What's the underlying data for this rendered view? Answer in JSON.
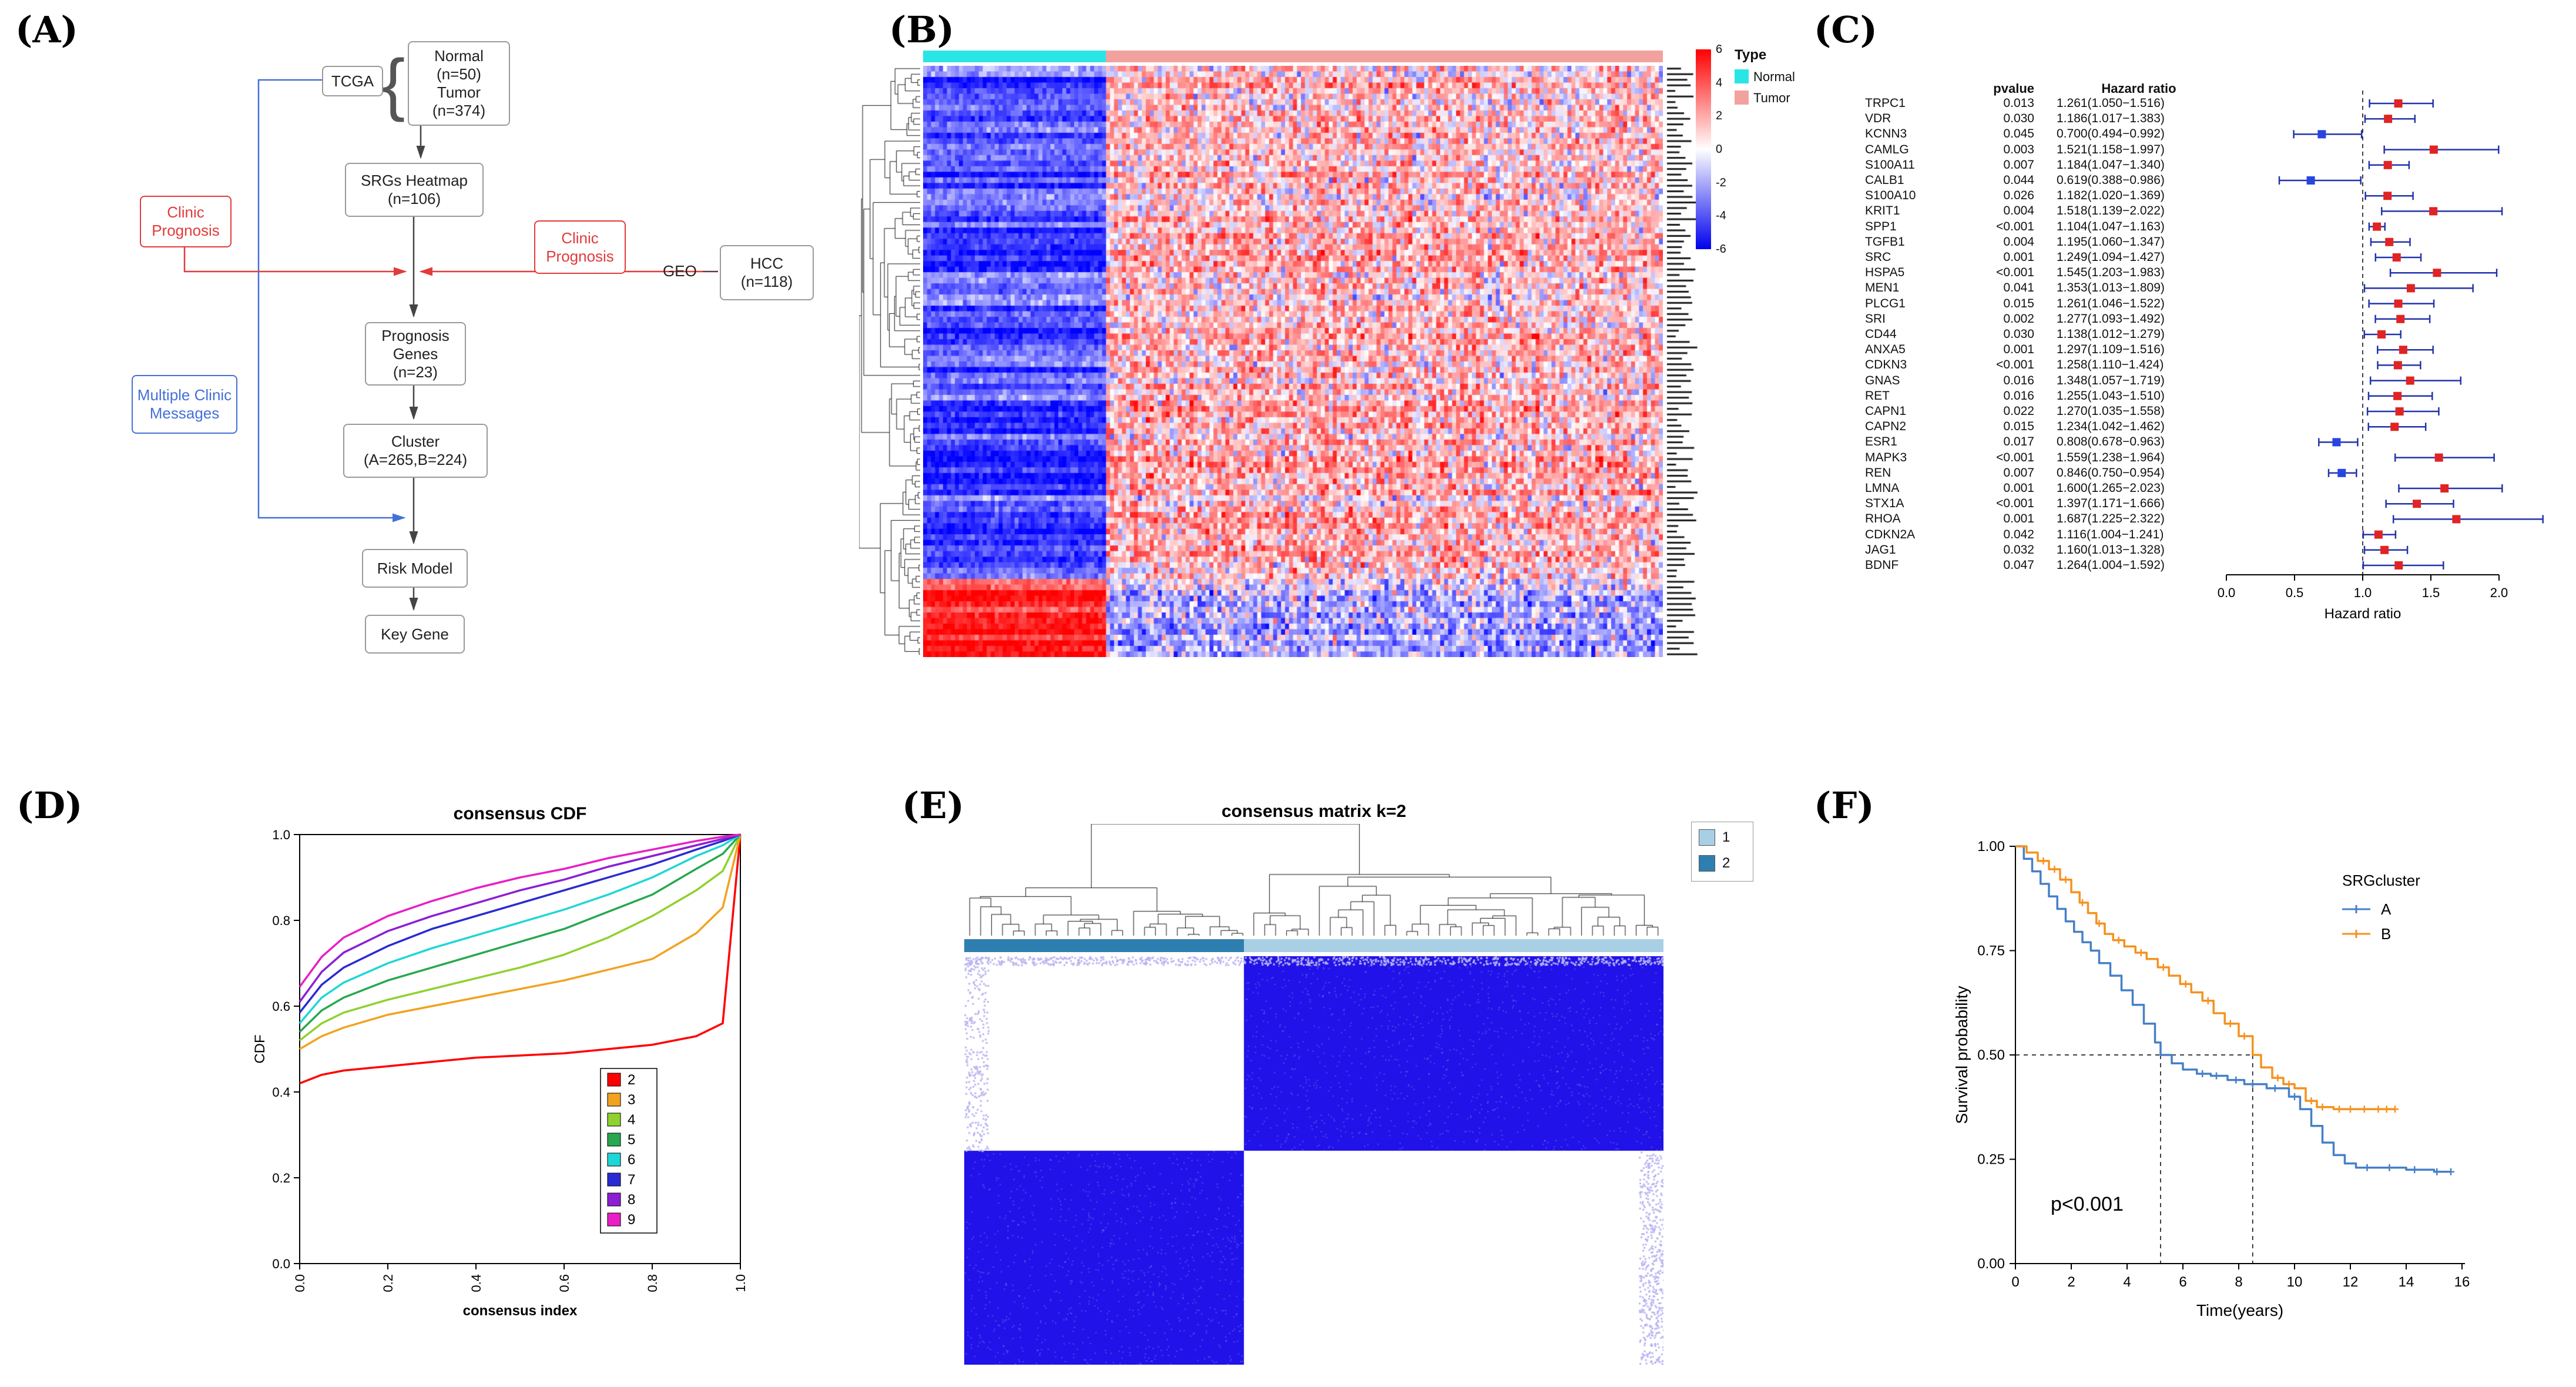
{
  "panels": {
    "a": "(A)",
    "b": "(B)",
    "c": "(C)",
    "d": "(D)",
    "e": "(E)",
    "f": "(F)"
  },
  "flowchart": {
    "tcga_label": "TCGA",
    "brace": "{",
    "normal_line1": "Normal",
    "normal_line2": "(n=50)",
    "tumor_line1": "Tumor",
    "tumor_line2": "(n=374)",
    "srgs_line1": "SRGs Heatmap",
    "srgs_line2": "(n=106)",
    "clinic_left_line1": "Clinic",
    "clinic_left_line2": "Prognosis",
    "clinic_right_line1": "Clinic",
    "clinic_right_line2": "Prognosis",
    "geo_label": "GEO",
    "hcc_line1": "HCC",
    "hcc_line2": "(n=118)",
    "prognosis_line1": "Prognosis",
    "prognosis_line2": "Genes",
    "prognosis_line3": "(n=23)",
    "multi_line1": "Multiple Clinic",
    "multi_line2": "Messages",
    "cluster_line1": "Cluster",
    "cluster_line2": "(A=265,B=224)",
    "risk_label": "Risk Model",
    "keygene_label": "Key Gene"
  },
  "chart_data": [
    {
      "id": "heatmap",
      "type": "heatmap",
      "seed": 7,
      "rows": 106,
      "cols_normal": 46,
      "cols_tumor": 140,
      "red_block_rows": 14,
      "value_range": [
        -6,
        6
      ],
      "colorbar_ticks": [
        "6",
        "4",
        "2",
        "0",
        "-2",
        "-4",
        "-6"
      ],
      "legend_title": "Type",
      "groups": [
        {
          "label": "Normal",
          "color": "#2ae5e5"
        },
        {
          "label": "Tumor",
          "color": "#f2a29e"
        }
      ],
      "color_high": "#ff0000",
      "color_mid": "#ffffff",
      "color_low": "#0000ee"
    },
    {
      "id": "forest",
      "type": "scatter",
      "header_pvalue": "pvalue",
      "header_hr": "Hazard ratio",
      "xlabel": "Hazard ratio",
      "x_ticks": [
        "0.0",
        "0.5",
        "1.0",
        "1.5",
        "2.0"
      ],
      "ref_line": 1.0,
      "colors": {
        "risk": "#e02424",
        "protective": "#2745e0",
        "whisker": "#2233aa"
      },
      "rows": [
        {
          "gene": "TRPC1",
          "pvalue": "0.013",
          "hr_text": "1.261(1.050−1.516)",
          "hr": 1.261,
          "lo": 1.05,
          "hi": 1.516
        },
        {
          "gene": "VDR",
          "pvalue": "0.030",
          "hr_text": "1.186(1.017−1.383)",
          "hr": 1.186,
          "lo": 1.017,
          "hi": 1.383
        },
        {
          "gene": "KCNN3",
          "pvalue": "0.045",
          "hr_text": "0.700(0.494−0.992)",
          "hr": 0.7,
          "lo": 0.494,
          "hi": 0.992
        },
        {
          "gene": "CAMLG",
          "pvalue": "0.003",
          "hr_text": "1.521(1.158−1.997)",
          "hr": 1.521,
          "lo": 1.158,
          "hi": 1.997
        },
        {
          "gene": "S100A11",
          "pvalue": "0.007",
          "hr_text": "1.184(1.047−1.340)",
          "hr": 1.184,
          "lo": 1.047,
          "hi": 1.34
        },
        {
          "gene": "CALB1",
          "pvalue": "0.044",
          "hr_text": "0.619(0.388−0.986)",
          "hr": 0.619,
          "lo": 0.388,
          "hi": 0.986
        },
        {
          "gene": "S100A10",
          "pvalue": "0.026",
          "hr_text": "1.182(1.020−1.369)",
          "hr": 1.182,
          "lo": 1.02,
          "hi": 1.369
        },
        {
          "gene": "KRIT1",
          "pvalue": "0.004",
          "hr_text": "1.518(1.139−2.022)",
          "hr": 1.518,
          "lo": 1.139,
          "hi": 2.022
        },
        {
          "gene": "SPP1",
          "pvalue": "<0.001",
          "hr_text": "1.104(1.047−1.163)",
          "hr": 1.104,
          "lo": 1.047,
          "hi": 1.163
        },
        {
          "gene": "TGFB1",
          "pvalue": "0.004",
          "hr_text": "1.195(1.060−1.347)",
          "hr": 1.195,
          "lo": 1.06,
          "hi": 1.347
        },
        {
          "gene": "SRC",
          "pvalue": "0.001",
          "hr_text": "1.249(1.094−1.427)",
          "hr": 1.249,
          "lo": 1.094,
          "hi": 1.427
        },
        {
          "gene": "HSPA5",
          "pvalue": "<0.001",
          "hr_text": "1.545(1.203−1.983)",
          "hr": 1.545,
          "lo": 1.203,
          "hi": 1.983
        },
        {
          "gene": "MEN1",
          "pvalue": "0.041",
          "hr_text": "1.353(1.013−1.809)",
          "hr": 1.353,
          "lo": 1.013,
          "hi": 1.809
        },
        {
          "gene": "PLCG1",
          "pvalue": "0.015",
          "hr_text": "1.261(1.046−1.522)",
          "hr": 1.261,
          "lo": 1.046,
          "hi": 1.522
        },
        {
          "gene": "SRI",
          "pvalue": "0.002",
          "hr_text": "1.277(1.093−1.492)",
          "hr": 1.277,
          "lo": 1.093,
          "hi": 1.492
        },
        {
          "gene": "CD44",
          "pvalue": "0.030",
          "hr_text": "1.138(1.012−1.279)",
          "hr": 1.138,
          "lo": 1.012,
          "hi": 1.279
        },
        {
          "gene": "ANXA5",
          "pvalue": "0.001",
          "hr_text": "1.297(1.109−1.516)",
          "hr": 1.297,
          "lo": 1.109,
          "hi": 1.516
        },
        {
          "gene": "CDKN3",
          "pvalue": "<0.001",
          "hr_text": "1.258(1.110−1.424)",
          "hr": 1.258,
          "lo": 1.11,
          "hi": 1.424
        },
        {
          "gene": "GNAS",
          "pvalue": "0.016",
          "hr_text": "1.348(1.057−1.719)",
          "hr": 1.348,
          "lo": 1.057,
          "hi": 1.719
        },
        {
          "gene": "RET",
          "pvalue": "0.016",
          "hr_text": "1.255(1.043−1.510)",
          "hr": 1.255,
          "lo": 1.043,
          "hi": 1.51
        },
        {
          "gene": "CAPN1",
          "pvalue": "0.022",
          "hr_text": "1.270(1.035−1.558)",
          "hr": 1.27,
          "lo": 1.035,
          "hi": 1.558
        },
        {
          "gene": "CAPN2",
          "pvalue": "0.015",
          "hr_text": "1.234(1.042−1.462)",
          "hr": 1.234,
          "lo": 1.042,
          "hi": 1.462
        },
        {
          "gene": "ESR1",
          "pvalue": "0.017",
          "hr_text": "0.808(0.678−0.963)",
          "hr": 0.808,
          "lo": 0.678,
          "hi": 0.963
        },
        {
          "gene": "MAPK3",
          "pvalue": "<0.001",
          "hr_text": "1.559(1.238−1.964)",
          "hr": 1.559,
          "lo": 1.238,
          "hi": 1.964
        },
        {
          "gene": "REN",
          "pvalue": "0.007",
          "hr_text": "0.846(0.750−0.954)",
          "hr": 0.846,
          "lo": 0.75,
          "hi": 0.954
        },
        {
          "gene": "LMNA",
          "pvalue": "0.001",
          "hr_text": "1.600(1.265−2.023)",
          "hr": 1.6,
          "lo": 1.265,
          "hi": 2.023
        },
        {
          "gene": "STX1A",
          "pvalue": "<0.001",
          "hr_text": "1.397(1.171−1.666)",
          "hr": 1.397,
          "lo": 1.171,
          "hi": 1.666
        },
        {
          "gene": "RHOA",
          "pvalue": "0.001",
          "hr_text": "1.687(1.225−2.322)",
          "hr": 1.687,
          "lo": 1.225,
          "hi": 2.322
        },
        {
          "gene": "CDKN2A",
          "pvalue": "0.042",
          "hr_text": "1.116(1.004−1.241)",
          "hr": 1.116,
          "lo": 1.004,
          "hi": 1.241
        },
        {
          "gene": "JAG1",
          "pvalue": "0.032",
          "hr_text": "1.160(1.013−1.328)",
          "hr": 1.16,
          "lo": 1.013,
          "hi": 1.328
        },
        {
          "gene": "BDNF",
          "pvalue": "0.047",
          "hr_text": "1.264(1.004−1.592)",
          "hr": 1.264,
          "lo": 1.004,
          "hi": 1.592
        }
      ]
    },
    {
      "id": "cdf",
      "type": "line",
      "title": "consensus CDF",
      "xlabel": "consensus index",
      "ylabel": "CDF",
      "x_ticks": [
        "0.0",
        "0.2",
        "0.4",
        "0.6",
        "0.8",
        "1.0"
      ],
      "y_ticks": [
        "0.0",
        "0.2",
        "0.4",
        "0.6",
        "0.8",
        "1.0"
      ],
      "xlim": [
        0,
        1
      ],
      "ylim": [
        0,
        1
      ],
      "x": [
        0,
        0.05,
        0.1,
        0.2,
        0.3,
        0.4,
        0.5,
        0.6,
        0.7,
        0.8,
        0.9,
        0.96,
        1.0
      ],
      "series": [
        {
          "name": "2",
          "color": "#ff0000",
          "y": [
            0.42,
            0.44,
            0.45,
            0.46,
            0.47,
            0.48,
            0.485,
            0.49,
            0.5,
            0.51,
            0.53,
            0.56,
            1.0
          ]
        },
        {
          "name": "3",
          "color": "#f2a21f",
          "y": [
            0.5,
            0.53,
            0.55,
            0.58,
            0.6,
            0.62,
            0.64,
            0.66,
            0.685,
            0.71,
            0.77,
            0.83,
            1.0
          ]
        },
        {
          "name": "4",
          "color": "#8fd12e",
          "y": [
            0.52,
            0.56,
            0.585,
            0.615,
            0.64,
            0.665,
            0.69,
            0.72,
            0.76,
            0.81,
            0.87,
            0.915,
            1.0
          ]
        },
        {
          "name": "5",
          "color": "#27a84e",
          "y": [
            0.54,
            0.59,
            0.62,
            0.66,
            0.69,
            0.72,
            0.75,
            0.78,
            0.82,
            0.86,
            0.92,
            0.955,
            1.0
          ]
        },
        {
          "name": "6",
          "color": "#1fd6d6",
          "y": [
            0.56,
            0.62,
            0.655,
            0.7,
            0.735,
            0.765,
            0.795,
            0.825,
            0.86,
            0.9,
            0.95,
            0.975,
            1.0
          ]
        },
        {
          "name": "7",
          "color": "#2a2ad4",
          "y": [
            0.585,
            0.65,
            0.69,
            0.74,
            0.78,
            0.81,
            0.84,
            0.87,
            0.9,
            0.93,
            0.965,
            0.985,
            1.0
          ]
        },
        {
          "name": "8",
          "color": "#8c1fd4",
          "y": [
            0.61,
            0.68,
            0.725,
            0.775,
            0.81,
            0.84,
            0.87,
            0.895,
            0.925,
            0.95,
            0.975,
            0.99,
            1.0
          ]
        },
        {
          "name": "9",
          "color": "#e81fc4",
          "y": [
            0.645,
            0.715,
            0.76,
            0.81,
            0.845,
            0.875,
            0.9,
            0.92,
            0.945,
            0.965,
            0.985,
            0.995,
            1.0
          ]
        }
      ]
    },
    {
      "id": "consensus",
      "type": "heatmap",
      "title": "consensus matrix k=2",
      "seed": 13,
      "legend": [
        {
          "label": "1",
          "color": "#a9cfe5"
        },
        {
          "label": "2",
          "color": "#2e7fb0"
        }
      ],
      "left_cluster_frac": 0.4,
      "top_block_frac": 0.476,
      "block_color": "#2012e8",
      "speckle_color": "#b9b4f2",
      "background": "#ffffff"
    },
    {
      "id": "km",
      "type": "line",
      "ylabel": "Survival probability",
      "xlabel": "Time(years)",
      "x_ticks": [
        0,
        2,
        4,
        6,
        8,
        10,
        12,
        14,
        16
      ],
      "y_tick_values": [
        1,
        0.75,
        0.5,
        0.25,
        0
      ],
      "y_tick_labels": [
        "1.00",
        "0.75",
        "0.50",
        "0.25",
        "0.00"
      ],
      "legend_title": "SRGcluster",
      "pvalue_text": "p<0.001",
      "median_y": 0.5,
      "medians": [
        5.2,
        8.5
      ],
      "xlim": [
        0,
        16
      ],
      "series": [
        {
          "name": "A",
          "color": "#4680c8",
          "t": [
            0,
            0.3,
            0.6,
            0.9,
            1.2,
            1.5,
            1.8,
            2.1,
            2.4,
            2.7,
            3.0,
            3.4,
            3.8,
            4.2,
            4.6,
            5.0,
            5.2,
            5.6,
            6.0,
            6.5,
            7.0,
            7.6,
            8.2,
            9.0,
            9.8,
            10.2,
            10.6,
            11.0,
            11.4,
            11.8,
            12.2,
            13.0,
            14.0,
            15.0,
            15.6
          ],
          "s": [
            1.0,
            0.97,
            0.94,
            0.91,
            0.88,
            0.85,
            0.82,
            0.795,
            0.77,
            0.75,
            0.72,
            0.69,
            0.655,
            0.62,
            0.575,
            0.53,
            0.5,
            0.48,
            0.465,
            0.455,
            0.45,
            0.44,
            0.43,
            0.42,
            0.4,
            0.37,
            0.33,
            0.29,
            0.26,
            0.24,
            0.23,
            0.23,
            0.225,
            0.22,
            0.22
          ],
          "censors": [
            [
              6.7,
              0.455
            ],
            [
              7.2,
              0.45
            ],
            [
              7.9,
              0.44
            ],
            [
              8.5,
              0.43
            ],
            [
              9.3,
              0.42
            ],
            [
              10.0,
              0.4
            ],
            [
              12.6,
              0.23
            ],
            [
              13.4,
              0.23
            ],
            [
              14.3,
              0.225
            ],
            [
              15.1,
              0.22
            ],
            [
              15.6,
              0.22
            ]
          ]
        },
        {
          "name": "B",
          "color": "#f5921e",
          "t": [
            0,
            0.4,
            0.8,
            1.2,
            1.6,
            2.0,
            2.3,
            2.6,
            2.9,
            3.2,
            3.5,
            3.9,
            4.3,
            4.7,
            5.1,
            5.5,
            5.9,
            6.3,
            6.7,
            7.1,
            7.5,
            8.0,
            8.5,
            8.8,
            9.2,
            9.6,
            10.0,
            10.4,
            10.8,
            11.4,
            12.2,
            13.0,
            13.6
          ],
          "s": [
            1.0,
            0.985,
            0.965,
            0.945,
            0.92,
            0.89,
            0.865,
            0.84,
            0.815,
            0.79,
            0.775,
            0.76,
            0.745,
            0.73,
            0.71,
            0.69,
            0.67,
            0.65,
            0.63,
            0.6,
            0.575,
            0.545,
            0.5,
            0.47,
            0.445,
            0.43,
            0.42,
            0.39,
            0.375,
            0.37,
            0.37,
            0.37,
            0.37
          ],
          "censors": [
            [
              1.0,
              0.965
            ],
            [
              1.4,
              0.945
            ],
            [
              1.8,
              0.92
            ],
            [
              2.4,
              0.865
            ],
            [
              3.0,
              0.815
            ],
            [
              3.7,
              0.775
            ],
            [
              4.5,
              0.745
            ],
            [
              5.3,
              0.71
            ],
            [
              6.1,
              0.67
            ],
            [
              6.9,
              0.63
            ],
            [
              7.7,
              0.575
            ],
            [
              8.2,
              0.545
            ],
            [
              9.4,
              0.445
            ],
            [
              9.8,
              0.43
            ],
            [
              10.6,
              0.39
            ],
            [
              11.0,
              0.375
            ],
            [
              11.6,
              0.37
            ],
            [
              12.0,
              0.37
            ],
            [
              12.5,
              0.37
            ],
            [
              13.0,
              0.37
            ],
            [
              13.3,
              0.37
            ],
            [
              13.6,
              0.37
            ]
          ]
        }
      ]
    }
  ]
}
